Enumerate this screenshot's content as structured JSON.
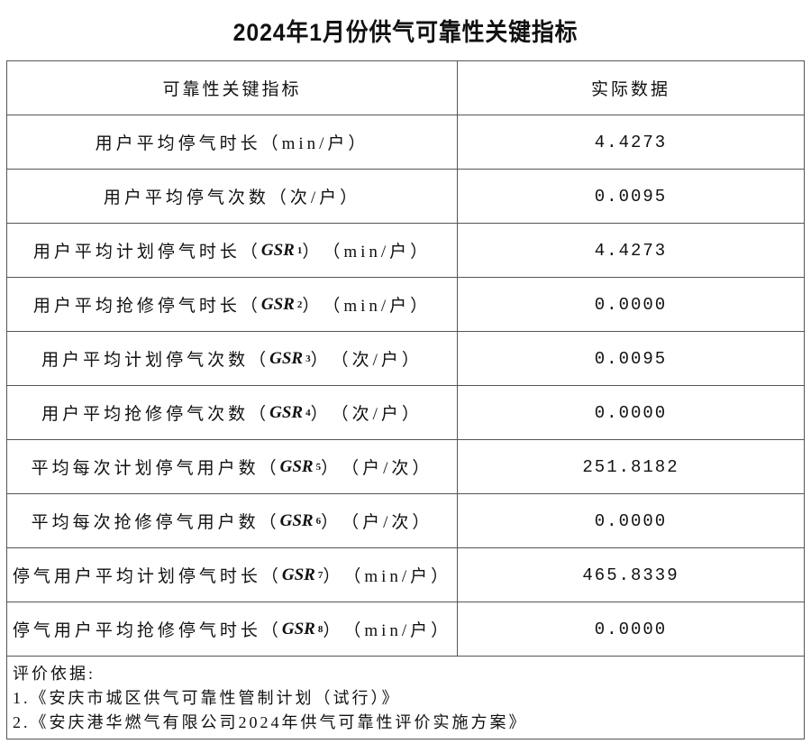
{
  "title": "2024年1月份供气可靠性关键指标",
  "header": {
    "indicator": "可靠性关键指标",
    "value": "实际数据"
  },
  "rows": [
    {
      "name": "用户平均停气时长",
      "code": "",
      "sub": "",
      "unit": "（min/户）",
      "value": "4.4273"
    },
    {
      "name": "用户平均停气次数",
      "code": "",
      "sub": "",
      "unit": "（次/户）",
      "value": "0.0095"
    },
    {
      "name": "用户平均计划停气时长",
      "code": "GSR",
      "sub": "1",
      "unit": "（min/户）",
      "value": "4.4273"
    },
    {
      "name": "用户平均抢修停气时长",
      "code": "GSR",
      "sub": "2",
      "unit": "（min/户）",
      "value": "0.0000"
    },
    {
      "name": "用户平均计划停气次数",
      "code": "GSR",
      "sub": "3",
      "unit": "（次/户）",
      "value": "0.0095"
    },
    {
      "name": "用户平均抢修停气次数",
      "code": "GSR",
      "sub": "4",
      "unit": "（次/户）",
      "value": "0.0000"
    },
    {
      "name": "平均每次计划停气用户数",
      "code": "GSR",
      "sub": "5",
      "unit": "（户/次）",
      "value": "251.8182"
    },
    {
      "name": "平均每次抢修停气用户数",
      "code": "GSR",
      "sub": "6",
      "unit": "（户/次）",
      "value": "0.0000"
    },
    {
      "name": "停气用户平均计划停气时长",
      "code": "GSR",
      "sub": "7",
      "unit": "（min/户）",
      "value": "465.8339"
    },
    {
      "name": "停气用户平均抢修停气时长",
      "code": "GSR",
      "sub": "8",
      "unit": "（min/户）",
      "value": "0.0000"
    }
  ],
  "notes": {
    "heading": "评价依据:",
    "items": [
      "1.《安庆市城区供气可靠性管制计划（试行）》",
      "2.《安庆港华燃气有限公司2024年供气可靠性评价实施方案》"
    ]
  }
}
